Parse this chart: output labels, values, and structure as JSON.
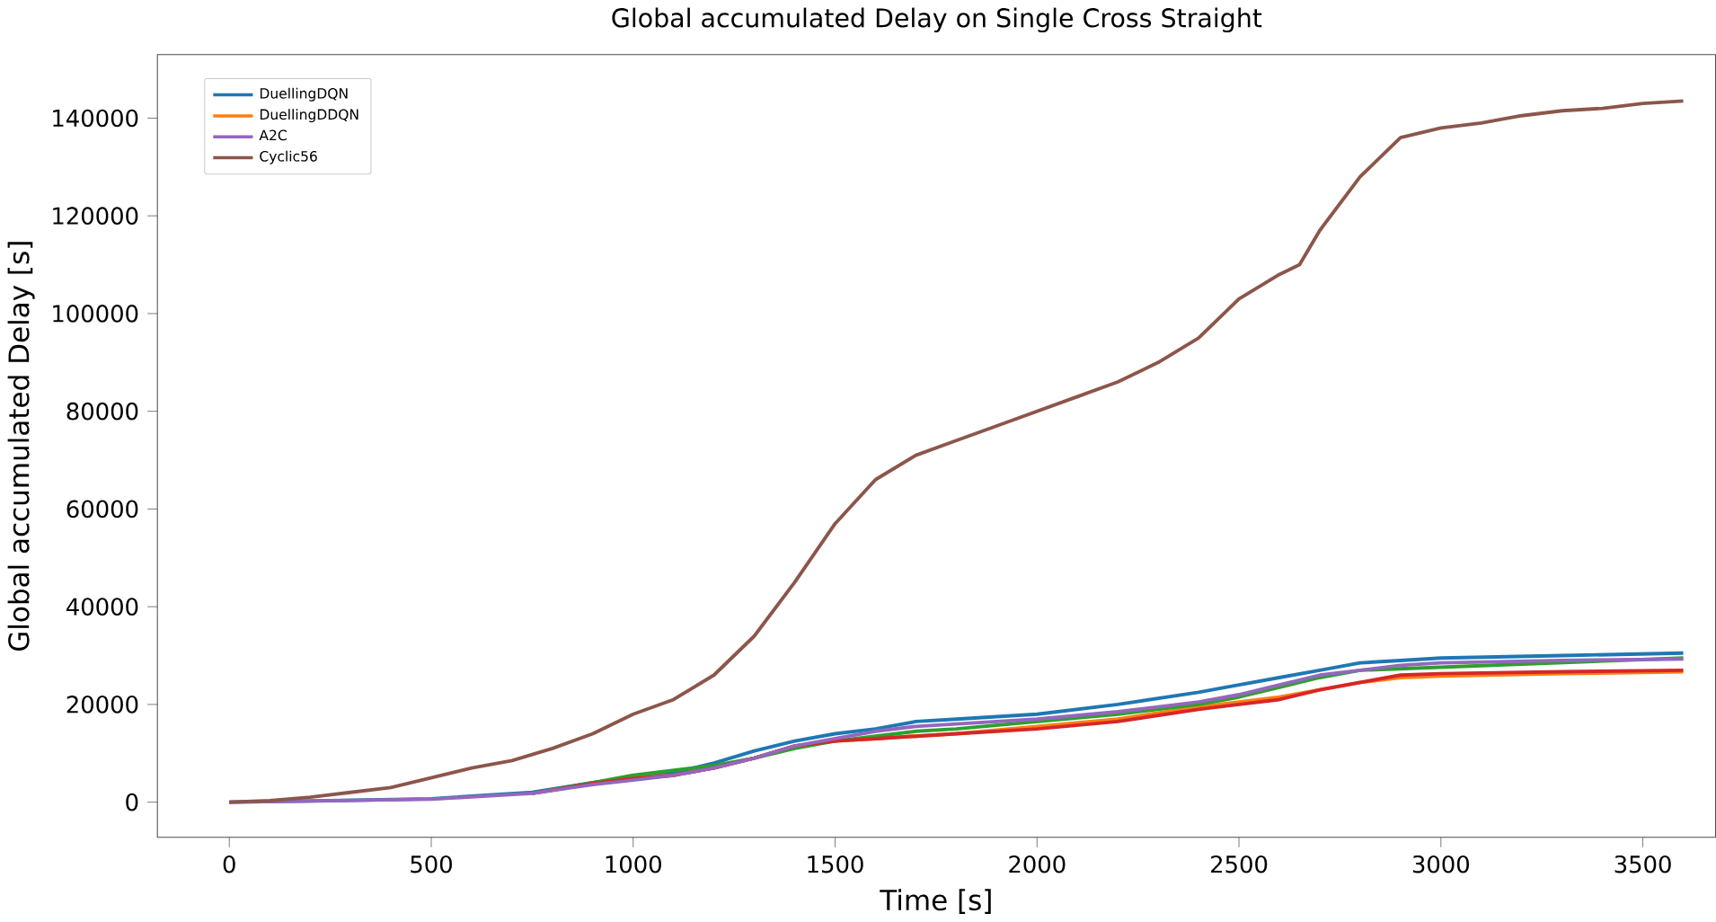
{
  "chart_data": {
    "type": "line",
    "title": "Global accumulated Delay on Single Cross Straight",
    "xlabel": "Time [s]",
    "ylabel": "Global accumulated Delay [s]",
    "xlim": [
      -178,
      3680
    ],
    "ylim": [
      -7200,
      153000
    ],
    "xticks": [
      0,
      500,
      1000,
      1500,
      2000,
      2500,
      3000,
      3500
    ],
    "yticks": [
      0,
      20000,
      40000,
      60000,
      80000,
      100000,
      120000,
      140000
    ],
    "legend": "top left",
    "grid": false,
    "x": [
      0,
      250,
      500,
      750,
      900,
      1000,
      1100,
      1200,
      1300,
      1400,
      1500,
      1600,
      1700,
      1800,
      2000,
      2200,
      2400,
      2500,
      2600,
      2700,
      2800,
      2900,
      3000,
      3300,
      3600
    ],
    "series": [
      {
        "name": "DuellingDQN",
        "color": "#1f77b4",
        "values": [
          0,
          300,
          700,
          2000,
          4000,
          5000,
          6000,
          8000,
          10500,
          12500,
          14000,
          15000,
          16500,
          17000,
          18000,
          20000,
          22500,
          24000,
          25500,
          27000,
          28500,
          29000,
          29500,
          30000,
          30500
        ]
      },
      {
        "name": "DuellingDDQN",
        "color": "#ff7f0e",
        "values": [
          null,
          null,
          null,
          null,
          3800,
          5000,
          5500,
          7000,
          9000,
          11500,
          12500,
          13000,
          13500,
          14000,
          15500,
          17000,
          19500,
          20500,
          21500,
          23000,
          24500,
          25500,
          25800,
          26300,
          26700
        ]
      },
      {
        "color": "#2ca02c",
        "values": [
          null,
          null,
          null,
          1800,
          4000,
          5500,
          6500,
          7500,
          9000,
          11000,
          12500,
          13500,
          14500,
          15000,
          16500,
          18000,
          20000,
          21500,
          23500,
          25500,
          27000,
          null,
          null,
          null,
          29500
        ]
      },
      {
        "color": "#d62728",
        "values": [
          null,
          null,
          null,
          1800,
          3800,
          4800,
          5500,
          7000,
          9000,
          11500,
          12500,
          13000,
          13500,
          14000,
          15000,
          16500,
          19000,
          20000,
          21000,
          23000,
          24500,
          26000,
          26300,
          26700,
          27000
        ]
      },
      {
        "name": "A2C",
        "color": "#9467bd",
        "values": [
          0,
          300,
          600,
          1800,
          3600,
          4500,
          5500,
          7000,
          9000,
          11500,
          13000,
          14500,
          15500,
          16000,
          17000,
          18500,
          20500,
          22000,
          24000,
          26000,
          27000,
          28000,
          28500,
          29000,
          29300
        ]
      },
      {
        "name": "Cyclic56",
        "color": "#8c564b",
        "x": [
          0,
          100,
          200,
          300,
          400,
          500,
          600,
          700,
          800,
          900,
          1000,
          1100,
          1200,
          1300,
          1400,
          1500,
          1600,
          1700,
          1800,
          1900,
          2000,
          2100,
          2200,
          2300,
          2400,
          2500,
          2600,
          2650,
          2700,
          2800,
          2900,
          3000,
          3100,
          3200,
          3300,
          3400,
          3500,
          3600
        ],
        "values": [
          0,
          300,
          1000,
          2000,
          3000,
          5000,
          7000,
          8500,
          11000,
          14000,
          18000,
          21000,
          26000,
          34000,
          45000,
          57000,
          66000,
          71000,
          74000,
          77000,
          80000,
          83000,
          86000,
          90000,
          95000,
          103000,
          108000,
          110000,
          117000,
          128000,
          136000,
          138000,
          139000,
          140500,
          141500,
          142000,
          143000,
          143500
        ]
      }
    ]
  }
}
